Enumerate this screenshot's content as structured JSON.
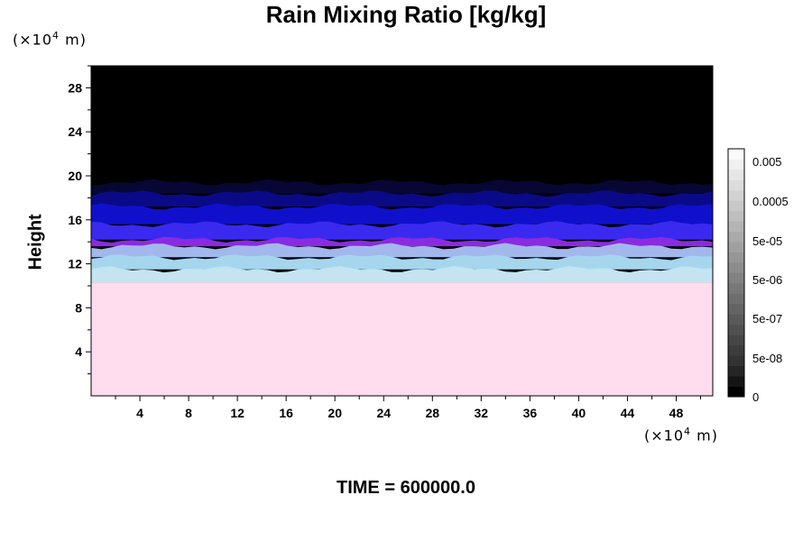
{
  "chart_data": {
    "type": "heatmap",
    "title": "Rain Mixing Ratio [kg/kg]",
    "ylabel": "Height",
    "xlabel": "",
    "x_unit_label": "(×10⁴ m)",
    "y_unit_label": "(×10⁴ m)",
    "x_unit_base": "(×10",
    "x_unit_exp": "4",
    "x_unit_end": " m)",
    "y_unit_base": "(×10",
    "y_unit_exp": "4",
    "y_unit_end": " m)",
    "xlim": [
      0,
      51
    ],
    "ylim": [
      0,
      30
    ],
    "xticks": [
      4,
      8,
      12,
      16,
      20,
      24,
      28,
      32,
      36,
      40,
      44,
      48
    ],
    "yticks": [
      4,
      8,
      12,
      16,
      20,
      24,
      28
    ],
    "layers": [
      {
        "y0": 0,
        "y1": 10.3,
        "color": "#ffdcee"
      },
      {
        "y0": 10.3,
        "y1": 11.5,
        "color": "#c4e4f2"
      },
      {
        "y0": 11.5,
        "y1": 12.6,
        "color": "#a6d6ee"
      },
      {
        "y0": 12.6,
        "y1": 13.6,
        "color": "#a2b8ec"
      },
      {
        "y0": 13.6,
        "y1": 14.2,
        "color": "#8a2be2"
      },
      {
        "y0": 14.2,
        "y1": 15.6,
        "color": "#3a2af0"
      },
      {
        "y0": 15.6,
        "y1": 17.2,
        "color": "#1010cc"
      },
      {
        "y0": 17.2,
        "y1": 18.4,
        "color": "#0a0a88"
      },
      {
        "y0": 18.4,
        "y1": 19.4,
        "color": "#070735"
      },
      {
        "y0": 19.4,
        "y1": 30,
        "color": "#000000"
      }
    ],
    "colorbar": {
      "labels": [
        "0.005",
        "0.0005",
        "5e-05",
        "5e-06",
        "5e-07",
        "5e-08",
        "0"
      ],
      "colors": [
        "#000000",
        "#141414",
        "#262626",
        "#333333",
        "#3c3c3c",
        "#464646",
        "#505050",
        "#5a5a5a",
        "#646464",
        "#6e6e6e",
        "#787878",
        "#828282",
        "#8c8c8c",
        "#969696",
        "#a0a0a0",
        "#aaaaaa",
        "#b4b4b4",
        "#bebebe",
        "#c8c8c8",
        "#d2d2d2",
        "#dcdcdc",
        "#e6e6e6",
        "#f0f0f0",
        "#fafafa"
      ]
    }
  },
  "footer": "TIME = 600000.0"
}
